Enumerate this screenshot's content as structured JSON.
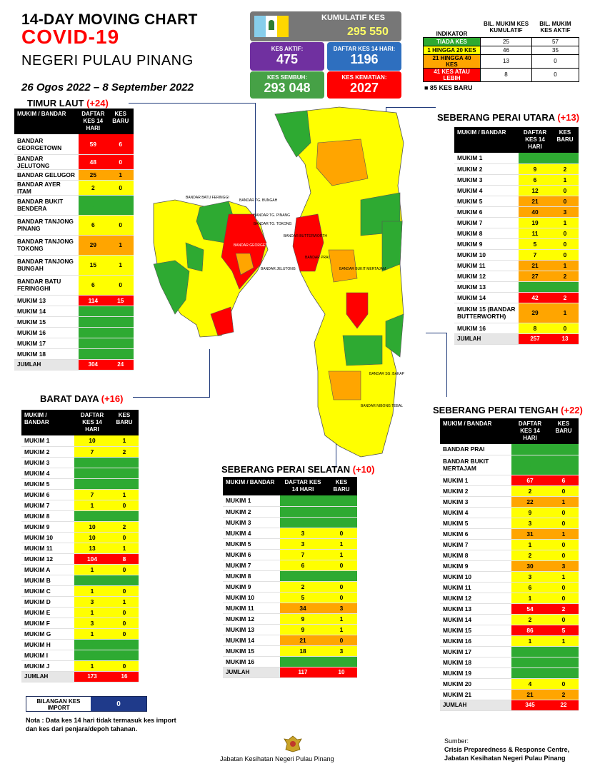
{
  "header": {
    "line1": "14-DAY MOVING CHART",
    "line2": "COVID-19",
    "line3": "NEGERI PULAU PINANG",
    "date_range": "26 Ogos 2022 – 8 September 2022"
  },
  "stats": {
    "kumulatif_label": "KUMULATIF KES",
    "kumulatif_value": "295 550",
    "aktif_label": "KES AKTIF:",
    "aktif_value": "475",
    "daftar_label": "DAFTAR KES 14 HARI:",
    "daftar_value": "1196",
    "sembuh_label": "KES SEMBUH:",
    "sembuh_value": "293 048",
    "kematian_label": "KES KEMATIAN:",
    "kematian_value": "2027"
  },
  "indicator": {
    "col1": "INDIKATOR",
    "col2": "BIL. MUKIM KES KUMULATIF",
    "col3": "BIL. MUKIM KES AKTIF",
    "rows": [
      {
        "label": "TIADA KES",
        "kum": "25",
        "aktif": "57",
        "color": "#2eaa32"
      },
      {
        "label": "1 HINGGA 20 KES",
        "kum": "46",
        "aktif": "35",
        "color": "#ffff00"
      },
      {
        "label": "21 HINGGA 40 KES",
        "kum": "13",
        "aktif": "0",
        "color": "#ffa500"
      },
      {
        "label": "41 KES ATAU LEBIH",
        "kum": "8",
        "aktif": "0",
        "color": "#ff0000"
      }
    ],
    "legend": "■ 85 KES BARU"
  },
  "sections": {
    "timur_laut": {
      "title": "TIMUR LAUT",
      "plus": "(+24)"
    },
    "barat_daya": {
      "title": "BARAT DAYA",
      "plus": "(+16)"
    },
    "spu": {
      "title": "SEBERANG PERAI UTARA",
      "plus": "(+13)"
    },
    "spt": {
      "title": "SEBERANG PERAI TENGAH",
      "plus": "(+22)"
    },
    "sps": {
      "title": "SEBERANG PERAI SELATAN",
      "plus": "(+10)"
    }
  },
  "table_headers": {
    "mukim": "MUKIM / BANDAR",
    "daftar": "DAFTAR KES 14 HARI",
    "baru": "KES BARU"
  },
  "timur_laut_rows": [
    [
      "BANDAR GEORGETOWN",
      "59",
      "6",
      3
    ],
    [
      "BANDAR JELUTONG",
      "48",
      "0",
      3
    ],
    [
      "BANDAR GELUGOR",
      "25",
      "1",
      2
    ],
    [
      "BANDAR AYER ITAM",
      "2",
      "0",
      1
    ],
    [
      "BANDAR BUKIT BENDERA",
      "0",
      "0",
      0
    ],
    [
      "BANDAR TANJONG PINANG",
      "6",
      "0",
      1
    ],
    [
      "BANDAR TANJONG TOKONG",
      "29",
      "1",
      2
    ],
    [
      "BANDAR TANJONG BUNGAH",
      "15",
      "1",
      1
    ],
    [
      "BANDAR BATU FERINGGHI",
      "6",
      "0",
      1
    ],
    [
      "MUKIM 13",
      "114",
      "15",
      3
    ],
    [
      "MUKIM 14",
      "0",
      "0",
      0
    ],
    [
      "MUKIM 15",
      "0",
      "0",
      0
    ],
    [
      "MUKIM 16",
      "0",
      "0",
      0
    ],
    [
      "MUKIM 17",
      "0",
      "0",
      0
    ],
    [
      "MUKIM 18",
      "0",
      "0",
      0
    ]
  ],
  "timur_laut_total": [
    "JUMLAH",
    "304",
    "24"
  ],
  "barat_daya_rows": [
    [
      "MUKIM 1",
      "10",
      "1",
      1
    ],
    [
      "MUKIM 2",
      "7",
      "2",
      1
    ],
    [
      "MUKIM 3",
      "0",
      "0",
      0
    ],
    [
      "MUKIM 4",
      "0",
      "0",
      0
    ],
    [
      "MUKIM 5",
      "0",
      "0",
      0
    ],
    [
      "MUKIM 6",
      "7",
      "1",
      1
    ],
    [
      "MUKIM 7",
      "1",
      "0",
      1
    ],
    [
      "MUKIM 8",
      "0",
      "0",
      0
    ],
    [
      "MUKIM 9",
      "10",
      "2",
      1
    ],
    [
      "MUKIM 10",
      "10",
      "0",
      1
    ],
    [
      "MUKIM 11",
      "13",
      "1",
      1
    ],
    [
      "MUKIM 12",
      "104",
      "8",
      3
    ],
    [
      "MUKIM A",
      "1",
      "0",
      1
    ],
    [
      "MUKIM B",
      "0",
      "0",
      0
    ],
    [
      "MUKIM C",
      "1",
      "0",
      1
    ],
    [
      "MUKIM D",
      "3",
      "1",
      1
    ],
    [
      "MUKIM E",
      "1",
      "0",
      1
    ],
    [
      "MUKIM F",
      "3",
      "0",
      1
    ],
    [
      "MUKIM G",
      "1",
      "0",
      1
    ],
    [
      "MUKIM H",
      "0",
      "0",
      0
    ],
    [
      "MUKIM I",
      "0",
      "0",
      0
    ],
    [
      "MUKIM J",
      "1",
      "0",
      1
    ]
  ],
  "barat_daya_total": [
    "JUMLAH",
    "173",
    "16"
  ],
  "spu_rows": [
    [
      "MUKIM 1",
      "0",
      "0",
      0
    ],
    [
      "MUKIM 2",
      "9",
      "2",
      1
    ],
    [
      "MUKIM 3",
      "6",
      "1",
      1
    ],
    [
      "MUKIM 4",
      "12",
      "0",
      1
    ],
    [
      "MUKIM 5",
      "21",
      "0",
      2
    ],
    [
      "MUKIM 6",
      "40",
      "3",
      2
    ],
    [
      "MUKIM 7",
      "19",
      "1",
      1
    ],
    [
      "MUKIM 8",
      "11",
      "0",
      1
    ],
    [
      "MUKIM 9",
      "5",
      "0",
      1
    ],
    [
      "MUKIM 10",
      "7",
      "0",
      1
    ],
    [
      "MUKIM 11",
      "21",
      "1",
      2
    ],
    [
      "MUKIM 12",
      "27",
      "2",
      2
    ],
    [
      "MUKIM 13",
      "0",
      "0",
      0
    ],
    [
      "MUKIM 14",
      "42",
      "2",
      3
    ],
    [
      "MUKIM 15 (BANDAR BUTTERWORTH)",
      "29",
      "1",
      2
    ],
    [
      "MUKIM 16",
      "8",
      "0",
      1
    ]
  ],
  "spu_total": [
    "JUMLAH",
    "257",
    "13"
  ],
  "spt_rows": [
    [
      "BANDAR PRAI",
      "0",
      "0",
      0
    ],
    [
      "BANDAR BUKIT MERTAJAM",
      "0",
      "0",
      0
    ],
    [
      "MUKIM 1",
      "67",
      "6",
      3
    ],
    [
      "MUKIM 2",
      "2",
      "0",
      1
    ],
    [
      "MUKIM 3",
      "22",
      "1",
      2
    ],
    [
      "MUKIM 4",
      "9",
      "0",
      1
    ],
    [
      "MUKIM 5",
      "3",
      "0",
      1
    ],
    [
      "MUKIM 6",
      "31",
      "1",
      2
    ],
    [
      "MUKIM 7",
      "1",
      "0",
      1
    ],
    [
      "MUKIM 8",
      "2",
      "0",
      1
    ],
    [
      "MUKIM 9",
      "30",
      "3",
      2
    ],
    [
      "MUKIM 10",
      "3",
      "1",
      1
    ],
    [
      "MUKIM 11",
      "6",
      "0",
      1
    ],
    [
      "MUKIM 12",
      "1",
      "0",
      1
    ],
    [
      "MUKIM 13",
      "54",
      "2",
      3
    ],
    [
      "MUKIM 14",
      "2",
      "0",
      1
    ],
    [
      "MUKIM 15",
      "86",
      "5",
      3
    ],
    [
      "MUKIM 16",
      "1",
      "1",
      1
    ],
    [
      "MUKIM 17",
      "0",
      "0",
      0
    ],
    [
      "MUKIM 18",
      "0",
      "0",
      0
    ],
    [
      "MUKIM 19",
      "0",
      "0",
      0
    ],
    [
      "MUKIM 20",
      "4",
      "0",
      1
    ],
    [
      "MUKIM 21",
      "21",
      "2",
      2
    ]
  ],
  "spt_total": [
    "JUMLAH",
    "345",
    "22"
  ],
  "sps_rows": [
    [
      "MUKIM 1",
      "0",
      "0",
      0
    ],
    [
      "MUKIM 2",
      "0",
      "0",
      0
    ],
    [
      "MUKIM 3",
      "0",
      "0",
      0
    ],
    [
      "MUKIM 4",
      "3",
      "0",
      1
    ],
    [
      "MUKIM 5",
      "3",
      "1",
      1
    ],
    [
      "MUKIM 6",
      "7",
      "1",
      1
    ],
    [
      "MUKIM 7",
      "6",
      "0",
      1
    ],
    [
      "MUKIM 8",
      "0",
      "0",
      0
    ],
    [
      "MUKIM 9",
      "2",
      "0",
      1
    ],
    [
      "MUKIM 10",
      "5",
      "0",
      1
    ],
    [
      "MUKIM 11",
      "34",
      "3",
      2
    ],
    [
      "MUKIM 12",
      "9",
      "1",
      1
    ],
    [
      "MUKIM 13",
      "9",
      "1",
      1
    ],
    [
      "MUKIM 14",
      "21",
      "0",
      2
    ],
    [
      "MUKIM 15",
      "18",
      "3",
      1
    ],
    [
      "MUKIM 16",
      "0",
      "0",
      0
    ]
  ],
  "sps_total": [
    "JUMLAH",
    "117",
    "10"
  ],
  "map_labels": {
    "batu_feringgi": "BANDAR BATU FERINGGI",
    "tg_bungah": "BANDAR TG. BUNGAH",
    "tg_pinang": "BANDAR TG. PINANG",
    "tg_tokong": "BANDAR TG. TOKONG",
    "georgetown": "BANDAR GEORGETOWN",
    "jelutong": "BANDAR JELUTONG",
    "butterworth": "BANDAR BUTTERWORTH",
    "prai": "BANDAR PRAI",
    "bukit_mertajam": "BANDAR BUKIT MERTAJAM",
    "sg_bakap": "BANDAR SG. BAKAP",
    "nibong_tebal": "BANDAR NIBONG TEBAL"
  },
  "import": {
    "label": "BILANGAN KES IMPORT",
    "value": "0"
  },
  "note": "Nota : Data kes 14 hari tidak termasuk kes import dan kes dari penjara/depoh tahanan.",
  "dept": "Jabatan Kesihatan Negeri Pulau Pinang",
  "source_label": "Sumber:",
  "source_line1": "Crisis Preparedness & Response Centre,",
  "source_line2": "Jabatan Kesihatan Negeri Pulau Pinang",
  "level_colors": [
    "#2eaa32",
    "#ffff00",
    "#ffa500",
    "#ff0000"
  ]
}
